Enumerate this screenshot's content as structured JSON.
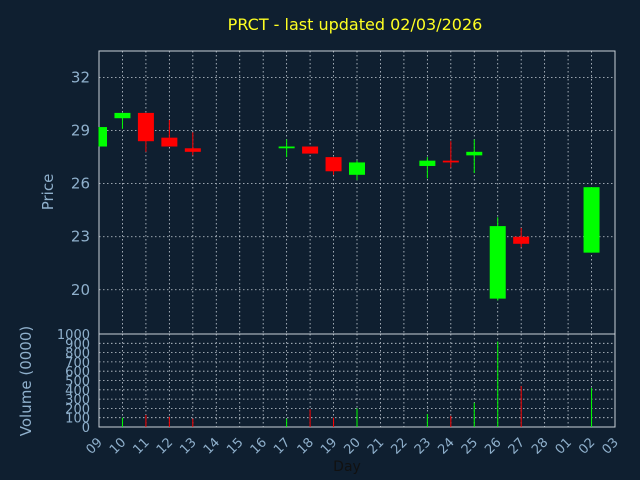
{
  "chart_data": {
    "type": "candlestick",
    "title": "PRCT - last updated 02/03/2026",
    "xlabel": "Day",
    "ylabel": "Price",
    "volume_label": "Volume (0000)",
    "ylim": [
      17.5,
      33.5
    ],
    "yticks": [
      "32",
      "29",
      "26",
      "23",
      "20"
    ],
    "volume_ylim": [
      0,
      1000
    ],
    "volume_ticks": [
      "1000",
      "900",
      "800",
      "700",
      "600",
      "500",
      "400",
      "300",
      "200",
      "100",
      "0"
    ],
    "x_tick_labels": [
      "09",
      "10",
      "11",
      "12",
      "13",
      "14",
      "15",
      "16",
      "17",
      "18",
      "19",
      "20",
      "21",
      "22",
      "23",
      "24",
      "25",
      "26",
      "27",
      "28",
      "01",
      "02",
      "03"
    ],
    "grid": true,
    "up_color": "#00ff00",
    "down_color": "#ff0000",
    "candles": [
      {
        "x": "09",
        "open": 28.1,
        "high": 29.2,
        "low": 28.1,
        "close": 29.2,
        "volume": 0
      },
      {
        "x": "10",
        "open": 29.7,
        "high": 30.0,
        "low": 29.1,
        "close": 30.0,
        "volume": 100
      },
      {
        "x": "11",
        "open": 30.0,
        "high": 30.0,
        "low": 27.8,
        "close": 28.4,
        "volume": 130
      },
      {
        "x": "12",
        "open": 28.6,
        "high": 29.6,
        "low": 28.1,
        "close": 28.1,
        "volume": 110
      },
      {
        "x": "13",
        "open": 28.0,
        "high": 28.9,
        "low": 27.6,
        "close": 27.8,
        "volume": 90
      },
      {
        "x": "17",
        "open": 28.0,
        "high": 28.5,
        "low": 27.5,
        "close": 28.1,
        "volume": 90
      },
      {
        "x": "18",
        "open": 28.1,
        "high": 28.1,
        "low": 27.7,
        "close": 27.7,
        "volume": 190
      },
      {
        "x": "19",
        "open": 27.5,
        "high": 27.5,
        "low": 26.5,
        "close": 26.7,
        "volume": 100
      },
      {
        "x": "20",
        "open": 26.5,
        "high": 27.3,
        "low": 26.2,
        "close": 27.2,
        "volume": 200
      },
      {
        "x": "23",
        "open": 27.0,
        "high": 27.5,
        "low": 26.3,
        "close": 27.3,
        "volume": 140
      },
      {
        "x": "24",
        "open": 27.3,
        "high": 28.4,
        "low": 26.9,
        "close": 27.2,
        "volume": 120
      },
      {
        "x": "25",
        "open": 27.6,
        "high": 28.5,
        "low": 26.6,
        "close": 27.8,
        "volume": 260
      },
      {
        "x": "26",
        "open": 19.5,
        "high": 24.1,
        "low": 19.4,
        "close": 23.6,
        "volume": 920
      },
      {
        "x": "27",
        "open": 23.0,
        "high": 23.5,
        "low": 22.4,
        "close": 22.6,
        "volume": 440
      },
      {
        "x": "02",
        "open": 22.1,
        "high": 25.8,
        "low": 22.1,
        "close": 25.8,
        "volume": 420
      }
    ]
  }
}
